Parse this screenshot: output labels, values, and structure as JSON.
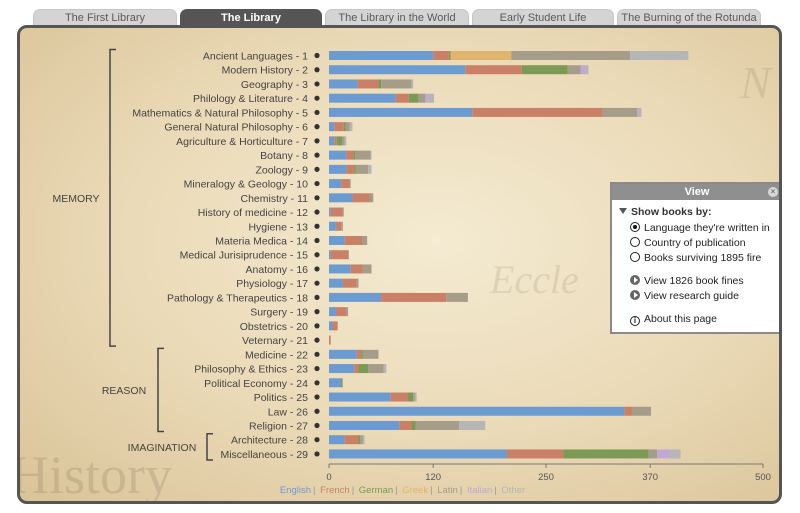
{
  "tabs": [
    {
      "label": "The First Library",
      "active": false
    },
    {
      "label": "The Library",
      "active": true
    },
    {
      "label": "The Library in the World",
      "active": false
    },
    {
      "label": "Early Student Life",
      "active": false
    },
    {
      "label": "The Burning of the Rotunda",
      "active": false
    }
  ],
  "colors": {
    "English": "#6b9bd1",
    "French": "#c98066",
    "German": "#7a9a55",
    "Greek": "#e0b56e",
    "Latin": "#a69c8a",
    "Italian": "#c2a8d6",
    "Other": "#b6b6b6"
  },
  "groups": [
    {
      "label": "MEMORY",
      "from": 1,
      "to": 21
    },
    {
      "label": "REASON",
      "from": 22,
      "to": 27
    },
    {
      "label": "IMAGINATION",
      "from": 28,
      "to": 29
    }
  ],
  "chart_data": {
    "type": "bar",
    "orientation": "horizontal",
    "stacked": true,
    "xlim": [
      0,
      500
    ],
    "xticks": [
      0,
      120,
      250,
      370,
      500
    ],
    "categories": [
      "Ancient Languages - 1",
      "Modern History - 2",
      "Geography - 3",
      "Philology & Literature - 4",
      "Mathematics & Natural Philosophy - 5",
      "General Natural Philosophy - 6",
      "Agriculture & Horticulture - 7",
      "Botany - 8",
      "Zoology - 9",
      "Mineralogy & Geology - 10",
      "Chemistry - 11",
      "History of medicine - 12",
      "Hygiene - 13",
      "Materia Medica - 14",
      "Medical Jurisiprudence - 15",
      "Anatomy - 16",
      "Physiology - 17",
      "Pathology & Therapeutics - 18",
      "Surgery - 19",
      "Obstetrics - 20",
      "Veternary - 21",
      "Medicine - 22",
      "Philosophy & Ethics - 23",
      "Political Economy - 24",
      "Politics - 25",
      "Law - 26",
      "Religion - 27",
      "Architecture - 28",
      "Miscellaneous - 29"
    ],
    "series": [
      {
        "name": "English",
        "values": [
          120,
          157,
          33,
          77,
          165,
          6,
          6,
          20,
          20,
          14,
          27,
          2,
          8,
          18,
          2,
          25,
          16,
          60,
          8,
          4,
          0,
          32,
          29,
          14,
          71,
          340,
          81,
          18,
          205
        ]
      },
      {
        "name": "French",
        "values": [
          18,
          65,
          24,
          15,
          150,
          11,
          3,
          8,
          9,
          9,
          20,
          14,
          6,
          20,
          20,
          14,
          16,
          75,
          12,
          6,
          2,
          5,
          5,
          0,
          20,
          9,
          14,
          16,
          65
        ]
      },
      {
        "name": "German",
        "values": [
          2,
          53,
          3,
          11,
          0,
          2,
          6,
          2,
          2,
          0,
          1,
          0,
          0,
          0,
          0,
          0,
          0,
          0,
          0,
          0,
          0,
          2,
          11,
          1,
          6,
          0,
          5,
          2,
          98
        ]
      },
      {
        "name": "Greek",
        "values": [
          70,
          0,
          0,
          0,
          0,
          0,
          0,
          0,
          0,
          0,
          0,
          0,
          0,
          0,
          0,
          0,
          0,
          0,
          0,
          0,
          0,
          0,
          0,
          0,
          0,
          0,
          0,
          0,
          0
        ]
      },
      {
        "name": "Latin",
        "values": [
          137,
          15,
          35,
          8,
          40,
          5,
          3,
          18,
          14,
          2,
          3,
          1,
          2,
          6,
          1,
          10,
          2,
          25,
          2,
          0,
          0,
          18,
          18,
          1,
          2,
          22,
          50,
          3,
          10
        ]
      },
      {
        "name": "Italian",
        "values": [
          0,
          6,
          0,
          4,
          0,
          0,
          0,
          0,
          0,
          0,
          0,
          0,
          0,
          0,
          0,
          0,
          0,
          0,
          0,
          0,
          0,
          0,
          0,
          0,
          0,
          0,
          0,
          0,
          15
        ]
      },
      {
        "name": "Other",
        "values": [
          67,
          3,
          2,
          6,
          5,
          3,
          2,
          1,
          4,
          0,
          0,
          0,
          0,
          0,
          0,
          0,
          0,
          0,
          0,
          0,
          0,
          0,
          3,
          0,
          2,
          0,
          30,
          2,
          12
        ]
      }
    ],
    "legend": [
      "English",
      "French",
      "German",
      "Greek",
      "Latin",
      "Italian",
      "Other"
    ],
    "legend_placement": "bottom-center",
    "grid": false
  },
  "panel": {
    "title": "View",
    "show_books_by": "Show books by:",
    "options": [
      "Language they're written in",
      "Country of publication",
      "Books surviving 1895 fire"
    ],
    "selected_option": 0,
    "links": [
      "View 1826 book fines",
      "View research guide"
    ],
    "about": "About this page"
  }
}
